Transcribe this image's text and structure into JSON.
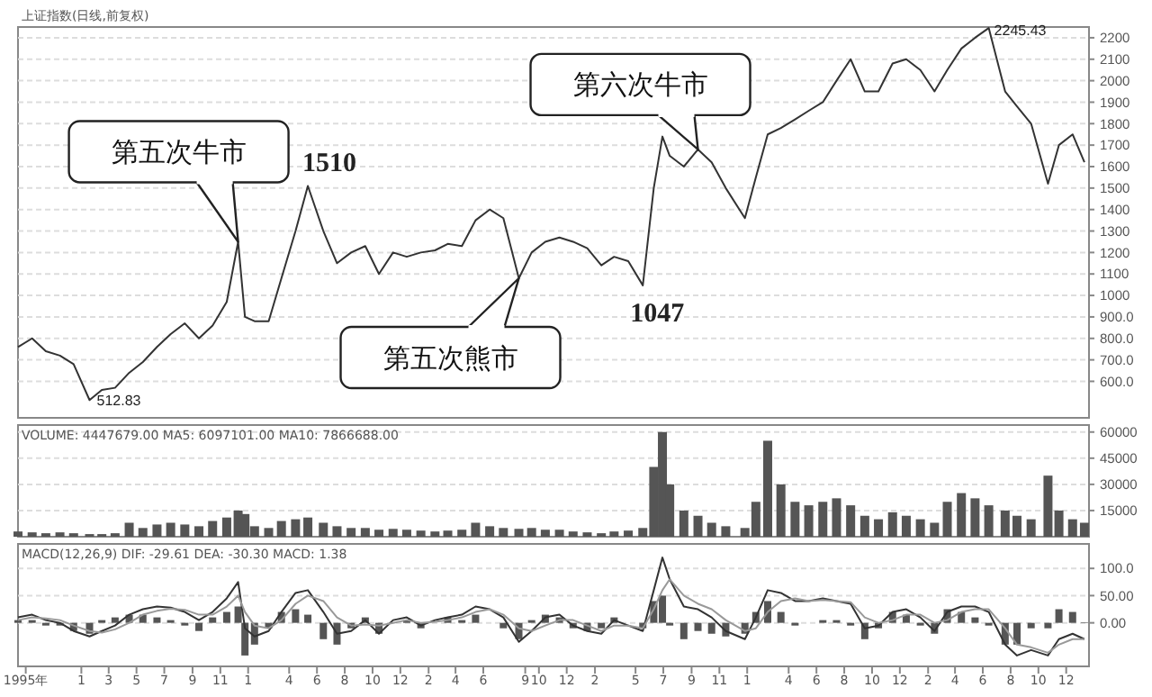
{
  "chart_data": [
    {
      "type": "line",
      "title": "上证指数(日线,前复权)",
      "xlim": [
        "1995-08-15",
        "2002-01-20"
      ],
      "ylim": [
        430,
        2250
      ],
      "yticks": [
        {
          "value": 600,
          "label": "600.0"
        },
        {
          "value": 700,
          "label": "700.0"
        },
        {
          "value": 800,
          "label": "800.0"
        },
        {
          "value": 900,
          "label": "900.0"
        },
        1000,
        1100,
        1200,
        1300,
        1400,
        1500,
        1600,
        1700,
        1800,
        1900,
        2000,
        2100,
        2200
      ],
      "grid": "y",
      "tick_labels": "y",
      "x": [
        "1995-08-15",
        "1995-09-15",
        "1995-10-15",
        "1995-11-15",
        "1995-12-15",
        "1996-01-19",
        "1996-02-15",
        "1996-03-15",
        "1996-04-15",
        "1996-05-15",
        "1996-06-15",
        "1996-07-15",
        "1996-08-15",
        "1996-09-15",
        "1996-10-15",
        "1996-11-15",
        "1996-12-10",
        "1996-12-25",
        "1997-01-15",
        "1997-02-15",
        "1997-03-15",
        "1997-04-15",
        "1997-05-12",
        "1997-06-15",
        "1997-07-15",
        "1997-08-15",
        "1997-09-15",
        "1997-10-15",
        "1997-11-15",
        "1997-12-15",
        "1998-01-15",
        "1998-02-15",
        "1998-03-15",
        "1998-04-15",
        "1998-05-15",
        "1998-06-15",
        "1998-07-15",
        "1998-08-18",
        "1998-09-15",
        "1998-10-15",
        "1998-11-15",
        "1998-12-15",
        "1999-01-15",
        "1999-02-15",
        "1999-03-15",
        "1999-04-15",
        "1999-05-17",
        "1999-06-10",
        "1999-06-29",
        "1999-07-15",
        "1999-08-15",
        "1999-09-15",
        "1999-10-15",
        "1999-11-15",
        "1999-12-27",
        "2000-01-20",
        "2000-02-15",
        "2000-03-15",
        "2000-04-15",
        "2000-05-15",
        "2000-06-15",
        "2000-07-15",
        "2000-08-15",
        "2000-09-15",
        "2000-10-15",
        "2000-11-15",
        "2000-12-15",
        "2001-01-15",
        "2001-02-15",
        "2001-03-15",
        "2001-04-15",
        "2001-05-15",
        "2001-06-14",
        "2001-07-20",
        "2001-08-15",
        "2001-09-15",
        "2001-10-22",
        "2001-11-15",
        "2001-12-15",
        "2002-01-10"
      ],
      "series": [
        {
          "color": "#333333",
          "values": [
            760,
            800,
            740,
            720,
            680,
            512.83,
            560,
            570,
            640,
            690,
            760,
            820,
            870,
            800,
            860,
            970,
            1250,
            900,
            880,
            880,
            1080,
            1300,
            1510,
            1300,
            1150,
            1200,
            1230,
            1100,
            1200,
            1180,
            1200,
            1210,
            1240,
            1230,
            1350,
            1400,
            1360,
            1080,
            1200,
            1250,
            1270,
            1250,
            1220,
            1140,
            1180,
            1160,
            1047,
            1500,
            1740,
            1650,
            1600,
            1680,
            1620,
            1500,
            1360,
            1550,
            1750,
            1780,
            1820,
            1860,
            1900,
            2000,
            2100,
            1950,
            1950,
            2080,
            2100,
            2050,
            1950,
            2050,
            2150,
            2200,
            2245.43,
            1950,
            1880,
            1800,
            1520,
            1700,
            1750,
            1620
          ]
        }
      ],
      "annotations": [
        {
          "text": "第五次牛市",
          "x": "1996-12-10",
          "y": 1250
        },
        {
          "text": "第六次牛市",
          "x": "1999-09-15",
          "y": 1680
        },
        {
          "text": "第五次熊市",
          "x": "1998-08-18",
          "y": 1080
        },
        {
          "text": "512.83",
          "x": "1996-01-19",
          "y": 512.83
        },
        {
          "text": "1510",
          "x": "1997-05-12",
          "y": 1510
        },
        {
          "text": "1047",
          "x": "1999-05-17",
          "y": 1047
        },
        {
          "text": "2245.43",
          "x": "2001-06-14",
          "y": 2245.43
        }
      ]
    },
    {
      "type": "bar",
      "title": "VOLUME: 4447679.00  MA5: 6097101.00  MA10: 7866688.00",
      "xlim": [
        "1995-08-15",
        "2002-01-20"
      ],
      "ylim": [
        0,
        64000
      ],
      "yticks": [
        15000,
        30000,
        45000,
        60000
      ],
      "grid": "y",
      "tick_labels": "y",
      "x": [
        "1995-08-15",
        "1995-09-15",
        "1995-10-15",
        "1995-11-15",
        "1995-12-15",
        "1996-01-19",
        "1996-02-15",
        "1996-03-15",
        "1996-04-15",
        "1996-05-15",
        "1996-06-15",
        "1996-07-15",
        "1996-08-15",
        "1996-09-15",
        "1996-10-15",
        "1996-11-15",
        "1996-12-10",
        "1996-12-25",
        "1997-01-15",
        "1997-02-15",
        "1997-03-15",
        "1997-04-15",
        "1997-05-12",
        "1997-06-15",
        "1997-07-15",
        "1997-08-15",
        "1997-09-15",
        "1997-10-15",
        "1997-11-15",
        "1997-12-15",
        "1998-01-15",
        "1998-02-15",
        "1998-03-15",
        "1998-04-15",
        "1998-05-15",
        "1998-06-15",
        "1998-07-15",
        "1998-08-18",
        "1998-09-15",
        "1998-10-15",
        "1998-11-15",
        "1998-12-15",
        "1999-01-15",
        "1999-02-15",
        "1999-03-15",
        "1999-04-15",
        "1999-05-17",
        "1999-06-10",
        "1999-06-29",
        "1999-07-15",
        "1999-08-15",
        "1999-09-15",
        "1999-10-15",
        "1999-11-15",
        "1999-12-27",
        "2000-01-20",
        "2000-02-15",
        "2000-03-15",
        "2000-04-15",
        "2000-05-15",
        "2000-06-15",
        "2000-07-15",
        "2000-08-15",
        "2000-09-15",
        "2000-10-15",
        "2000-11-15",
        "2000-12-15",
        "2001-01-15",
        "2001-02-15",
        "2001-03-15",
        "2001-04-15",
        "2001-05-15",
        "2001-06-14",
        "2001-07-20",
        "2001-08-15",
        "2001-09-15",
        "2001-10-22",
        "2001-11-15",
        "2001-12-15",
        "2002-01-10"
      ],
      "series": [
        {
          "color": "#555555",
          "values": [
            3000,
            2500,
            2000,
            2500,
            2000,
            1500,
            1500,
            2000,
            8000,
            5000,
            7000,
            8000,
            7000,
            6000,
            9000,
            11000,
            15000,
            13000,
            6000,
            5000,
            9000,
            10000,
            11000,
            8000,
            6000,
            5000,
            5000,
            4000,
            4500,
            4000,
            3500,
            3000,
            3500,
            4000,
            8000,
            6000,
            5000,
            4500,
            5000,
            4000,
            4000,
            3000,
            2500,
            2000,
            3000,
            3500,
            5000,
            40000,
            60000,
            30000,
            15000,
            12000,
            8000,
            6000,
            5000,
            20000,
            55000,
            30000,
            20000,
            18000,
            20000,
            22000,
            18000,
            12000,
            10000,
            14000,
            12000,
            10000,
            8000,
            20000,
            25000,
            22000,
            18000,
            15000,
            12000,
            10000,
            35000,
            15000,
            10000,
            8000
          ]
        }
      ]
    },
    {
      "type": "line",
      "title": "MACD(12,26,9)  DIF: -29.61  DEA: -30.30  MACD: 1.38",
      "xlim": [
        "1995-08-15",
        "2002-01-20"
      ],
      "ylim": [
        -80,
        145
      ],
      "yticks": [
        {
          "value": 0,
          "label": "0.00"
        },
        {
          "value": 50,
          "label": "50.00"
        },
        {
          "value": 100,
          "label": "100.0"
        }
      ],
      "grid": "y",
      "xticks": [
        {
          "value": "1995-09-01",
          "label": "1995年"
        },
        {
          "value": "1996-01-01",
          "label": "1"
        },
        {
          "value": "1996-03-01",
          "label": "3"
        },
        {
          "value": "1996-05-01",
          "label": "5"
        },
        {
          "value": "1996-07-01",
          "label": "7"
        },
        {
          "value": "1996-09-01",
          "label": "9"
        },
        {
          "value": "1996-11-01",
          "label": "11"
        },
        {
          "value": "1997-01-01",
          "label": "1"
        },
        {
          "value": "1997-04-01",
          "label": "4"
        },
        {
          "value": "1997-06-01",
          "label": "6"
        },
        {
          "value": "1997-08-01",
          "label": "8"
        },
        {
          "value": "1997-10-01",
          "label": "10"
        },
        {
          "value": "1997-12-01",
          "label": "12"
        },
        {
          "value": "1998-02-01",
          "label": "2"
        },
        {
          "value": "1998-04-01",
          "label": "4"
        },
        {
          "value": "1998-06-01",
          "label": "6"
        },
        {
          "value": "1998-09-01",
          "label": "9"
        },
        {
          "value": "1998-10-01",
          "label": "10"
        },
        {
          "value": "1998-12-01",
          "label": "12"
        },
        {
          "value": "1999-02-01",
          "label": "2"
        },
        {
          "value": "1999-05-01",
          "label": "5"
        },
        {
          "value": "1999-07-01",
          "label": "7"
        },
        {
          "value": "1999-09-01",
          "label": "9"
        },
        {
          "value": "1999-11-01",
          "label": "11"
        },
        {
          "value": "2000-01-01",
          "label": "1"
        },
        {
          "value": "2000-04-01",
          "label": "4"
        },
        {
          "value": "2000-06-01",
          "label": "6"
        },
        {
          "value": "2000-08-01",
          "label": "8"
        },
        {
          "value": "2000-10-01",
          "label": "10"
        },
        {
          "value": "2000-12-01",
          "label": "12"
        },
        {
          "value": "2001-02-01",
          "label": "2"
        },
        {
          "value": "2001-04-01",
          "label": "4"
        },
        {
          "value": "2001-06-01",
          "label": "6"
        },
        {
          "value": "2001-08-01",
          "label": "8"
        },
        {
          "value": "2001-10-01",
          "label": "10"
        },
        {
          "value": "2001-12-01",
          "label": "12"
        }
      ],
      "x": [
        "1995-08-15",
        "1995-09-15",
        "1995-10-15",
        "1995-11-15",
        "1995-12-15",
        "1996-01-19",
        "1996-02-15",
        "1996-03-15",
        "1996-04-15",
        "1996-05-15",
        "1996-06-15",
        "1996-07-15",
        "1996-08-15",
        "1996-09-15",
        "1996-10-15",
        "1996-11-15",
        "1996-12-10",
        "1996-12-25",
        "1997-01-15",
        "1997-02-15",
        "1997-03-15",
        "1997-04-15",
        "1997-05-12",
        "1997-06-15",
        "1997-07-15",
        "1997-08-15",
        "1997-09-15",
        "1997-10-15",
        "1997-11-15",
        "1997-12-15",
        "1998-01-15",
        "1998-02-15",
        "1998-03-15",
        "1998-04-15",
        "1998-05-15",
        "1998-06-15",
        "1998-07-15",
        "1998-08-18",
        "1998-09-15",
        "1998-10-15",
        "1998-11-15",
        "1998-12-15",
        "1999-01-15",
        "1999-02-15",
        "1999-03-15",
        "1999-04-15",
        "1999-05-17",
        "1999-06-10",
        "1999-06-29",
        "1999-07-15",
        "1999-08-15",
        "1999-09-15",
        "1999-10-15",
        "1999-11-15",
        "1999-12-27",
        "2000-01-20",
        "2000-02-15",
        "2000-03-15",
        "2000-04-15",
        "2000-05-15",
        "2000-06-15",
        "2000-07-15",
        "2000-08-15",
        "2000-09-15",
        "2000-10-15",
        "2000-11-15",
        "2000-12-15",
        "2001-01-15",
        "2001-02-15",
        "2001-03-15",
        "2001-04-15",
        "2001-05-15",
        "2001-06-14",
        "2001-07-20",
        "2001-08-15",
        "2001-09-15",
        "2001-10-22",
        "2001-11-15",
        "2001-12-15",
        "2002-01-10"
      ],
      "series": [
        {
          "type": "bar",
          "color": "#555555",
          "values": [
            5,
            5,
            -5,
            -5,
            -15,
            -20,
            5,
            10,
            15,
            15,
            10,
            5,
            -5,
            -15,
            10,
            20,
            30,
            -60,
            -40,
            -10,
            20,
            25,
            15,
            -30,
            -40,
            -10,
            10,
            -20,
            null,
            5,
            -10,
            null,
            10,
            5,
            15,
            0,
            -10,
            -30,
            5,
            15,
            10,
            -10,
            -15,
            -10,
            10,
            0,
            -10,
            40,
            50,
            -5,
            -30,
            -15,
            -20,
            -25,
            -20,
            20,
            40,
            20,
            -5,
            0,
            5,
            5,
            -5,
            -30,
            -10,
            20,
            15,
            -5,
            -20,
            25,
            20,
            10,
            -5,
            -40,
            -40,
            -10,
            -10,
            25,
            20,
            1
          ]
        },
        {
          "color": "#333333",
          "values": [
            10,
            15,
            5,
            0,
            -15,
            -25,
            -15,
            -5,
            15,
            25,
            30,
            28,
            20,
            5,
            20,
            45,
            75,
            -10,
            -25,
            -15,
            20,
            55,
            60,
            20,
            -20,
            -15,
            5,
            -20,
            5,
            10,
            -5,
            5,
            10,
            15,
            30,
            25,
            10,
            -35,
            -15,
            10,
            15,
            -5,
            -15,
            -20,
            5,
            -5,
            -15,
            60,
            120,
            80,
            30,
            25,
            10,
            -15,
            -30,
            10,
            60,
            55,
            40,
            40,
            45,
            40,
            35,
            -10,
            -5,
            20,
            25,
            10,
            -15,
            20,
            30,
            30,
            20,
            -40,
            -60,
            -50,
            -60,
            -30,
            -20,
            -30
          ]
        },
        {
          "color": "#999999",
          "values": [
            5,
            10,
            8,
            5,
            -5,
            -15,
            -18,
            -12,
            0,
            15,
            22,
            26,
            24,
            15,
            15,
            30,
            50,
            20,
            -5,
            -10,
            5,
            35,
            50,
            40,
            10,
            -5,
            -3,
            -5,
            0,
            5,
            0,
            2,
            5,
            10,
            20,
            25,
            15,
            -10,
            -15,
            -5,
            5,
            5,
            -5,
            -15,
            -5,
            -5,
            -10,
            25,
            60,
            80,
            50,
            35,
            25,
            5,
            -15,
            -10,
            20,
            40,
            45,
            40,
            42,
            40,
            38,
            10,
            0,
            5,
            15,
            15,
            0,
            5,
            20,
            25,
            25,
            -10,
            -40,
            -45,
            -55,
            -40,
            -30,
            -30
          ]
        }
      ]
    }
  ]
}
